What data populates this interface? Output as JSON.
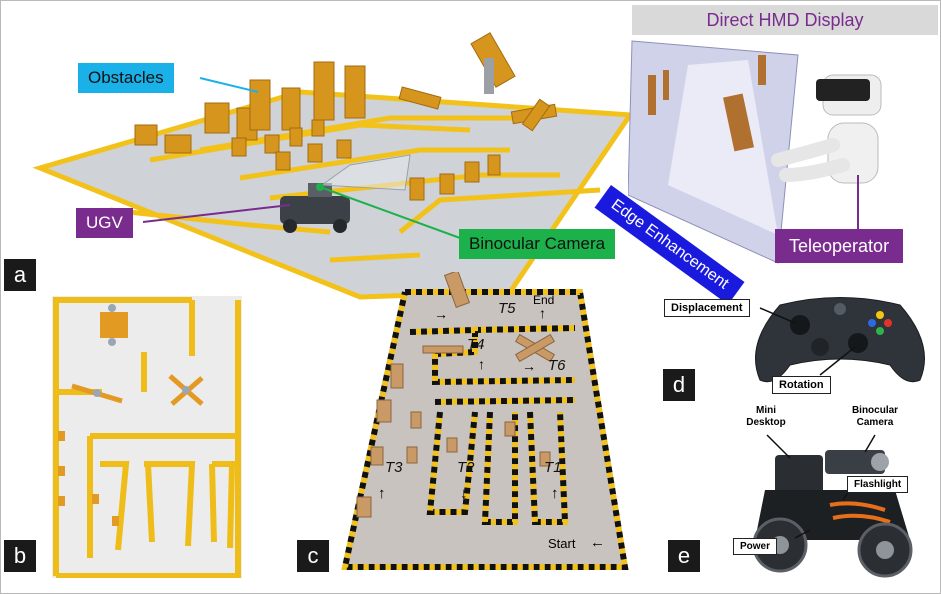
{
  "panel_a": {
    "letter": "a",
    "labels": {
      "obstacles": "Obstacles",
      "ugv": "UGV",
      "binocular_camera": "Binocular Camera",
      "direct_hmd_display": "Direct HMD Display",
      "edge_enhancement": "Edge Enhancement",
      "teleoperator": "Teleoperator"
    },
    "colors": {
      "obstacles_bg": "#1ab0e8",
      "ugv_bg": "#7a2c8e",
      "camera_bg": "#1db14b",
      "hmd_header_bg": "#d9d9d9",
      "hmd_text": "#7a2c8e",
      "edge_bg": "#1a1adf",
      "teleoperator_bg": "#7a2c8e",
      "track_yellow": "#f2c21b"
    }
  },
  "panel_b": {
    "letter": "b"
  },
  "panel_c": {
    "letter": "c",
    "tasks": [
      "T1",
      "T2",
      "T3",
      "T4",
      "T5",
      "T6"
    ],
    "start": "Start",
    "end": "End",
    "arrows": {
      "up": "↑",
      "down": "↓",
      "right": "→",
      "left": "←"
    }
  },
  "panel_d": {
    "letter": "d",
    "displacement": "Displacement",
    "rotation": "Rotation"
  },
  "panel_e": {
    "letter": "e",
    "mini_desktop": "Mini\nDesktop",
    "binocular_camera": "Binocular\nCamera",
    "flashlight": "Flashlight",
    "power": "Power"
  }
}
